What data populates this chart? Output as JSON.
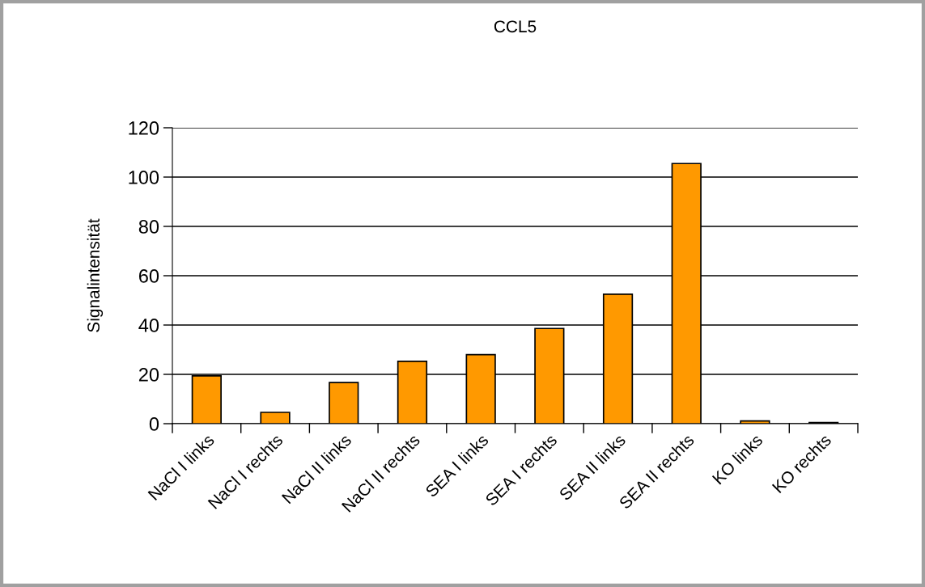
{
  "chart_data": {
    "type": "bar",
    "title": "CCL5",
    "ylabel": "Signalintensität",
    "categories": [
      "NaCl I links",
      "NaCl I rechts",
      "NaCl II links",
      "NaCl II rechts",
      "SEA I links",
      "SEA I rechts",
      "SEA II links",
      "SEA II rechts",
      "KO links",
      "KO rechts"
    ],
    "values": [
      19.4,
      4.6,
      16.7,
      25.3,
      28.0,
      38.6,
      52.5,
      105.5,
      1.1,
      0.5
    ],
    "color": "#ff9900",
    "ylim": [
      0,
      120
    ],
    "yticks": [
      0,
      20,
      40,
      60,
      80,
      100,
      120
    ],
    "grid": "y"
  }
}
